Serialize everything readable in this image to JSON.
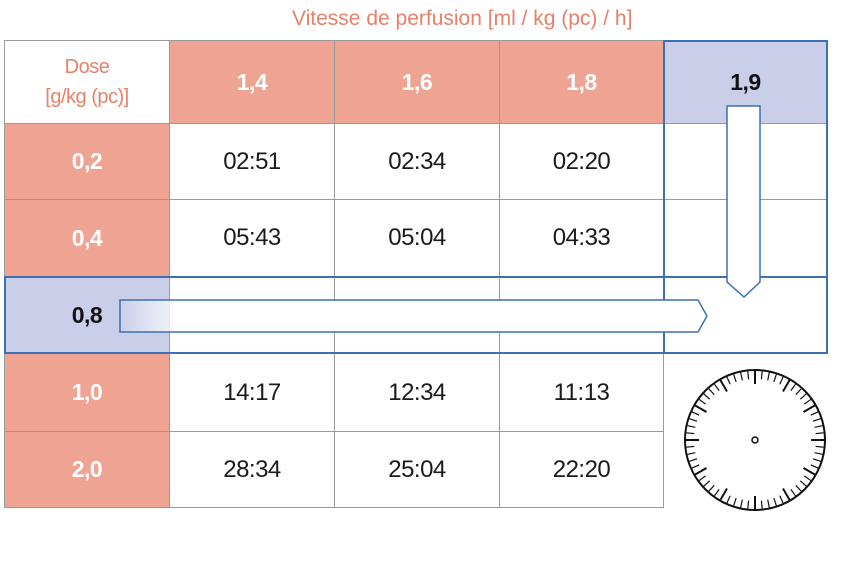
{
  "header": {
    "title": "Vitesse de perfusion [ml / kg (pc) / h]"
  },
  "table": {
    "corner_line1": "Dose",
    "corner_line2": "[g/kg (pc)]",
    "rates": [
      "1,4",
      "1,6",
      "1,8",
      "1,9"
    ],
    "rows": [
      {
        "dose": "0,2",
        "times": [
          "02:51",
          "02:34",
          "02:20",
          ""
        ]
      },
      {
        "dose": "0,4",
        "times": [
          "05:43",
          "05:04",
          "04:33",
          ""
        ]
      },
      {
        "dose": "0,8",
        "times": [
          "",
          "",
          "",
          ""
        ]
      },
      {
        "dose": "1,0",
        "times": [
          "14:17",
          "12:34",
          "11:13",
          ""
        ]
      },
      {
        "dose": "2,0",
        "times": [
          "28:34",
          "25:04",
          "22:20",
          ""
        ]
      }
    ],
    "selected_rate": "1,9",
    "selected_dose": "0,8"
  },
  "colors": {
    "header_fill": "#eea393",
    "highlight_fill": "#c9cfe9",
    "highlight_border": "#3d6fb2",
    "title_color": "#e8806a"
  },
  "icons": {
    "clock": "clock-dial-icon",
    "arrows": "arrow-right-icon, arrow-down-icon"
  }
}
